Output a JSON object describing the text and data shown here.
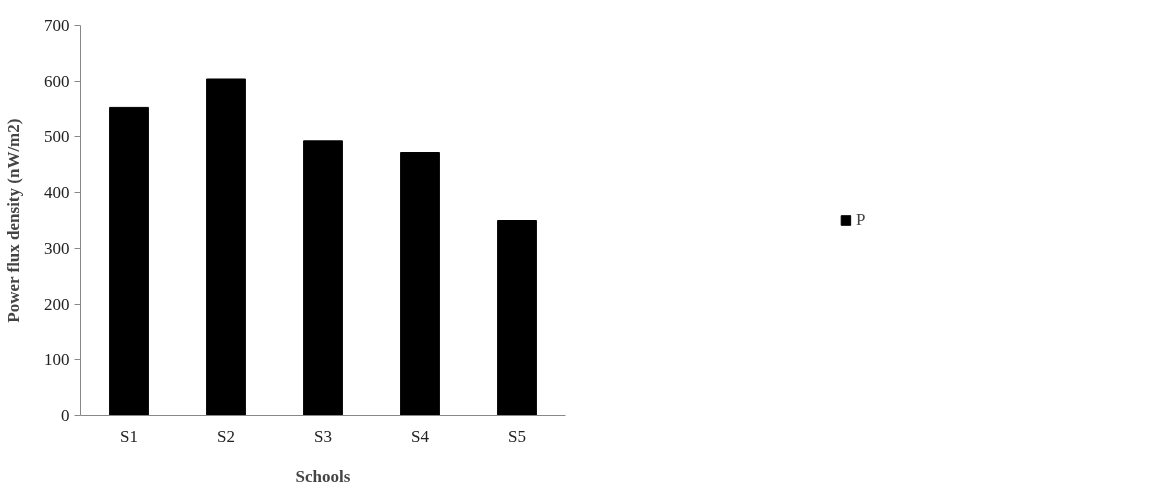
{
  "chart_data": {
    "type": "bar",
    "xlabel": "Schools",
    "ylabel": "Power flux density (nW/m2)",
    "categories": [
      "S1",
      "S2",
      "S3",
      "S4",
      "S5"
    ],
    "series": [
      {
        "name": "P",
        "color": "#000000",
        "values": [
          553,
          604,
          493,
          472,
          350
        ]
      }
    ],
    "ylim": [
      0,
      700
    ],
    "yticks": [
      0,
      100,
      200,
      300,
      400,
      500,
      600,
      700
    ],
    "grid": false,
    "legend": "right"
  }
}
